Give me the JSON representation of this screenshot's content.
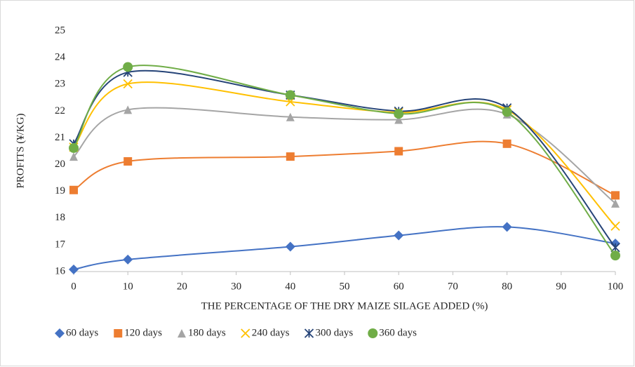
{
  "chart_data": {
    "type": "line",
    "x_label": "THE PERCENTAGE OF THE DRY MAIZE SILAGE ADDED (%)",
    "y_label": "PROFITS  (¥/KG)",
    "x": [
      0,
      10,
      40,
      60,
      80,
      100
    ],
    "series": [
      {
        "name": "60 days",
        "color": "#4472c4",
        "marker": "diamond",
        "values": [
          16.08,
          16.45,
          16.93,
          17.35,
          17.67,
          17.05
        ]
      },
      {
        "name": "120 days",
        "color": "#ed7d31",
        "marker": "square",
        "values": [
          19.05,
          20.12,
          20.3,
          20.5,
          20.78,
          18.85
        ]
      },
      {
        "name": "180 days",
        "color": "#a5a5a5",
        "marker": "triangle",
        "values": [
          20.3,
          22.05,
          21.78,
          21.68,
          21.88,
          18.55
        ]
      },
      {
        "name": "240 days",
        "color": "#ffc000",
        "marker": "x",
        "values": [
          20.65,
          23.02,
          22.35,
          21.95,
          22.05,
          17.7
        ]
      },
      {
        "name": "300 days",
        "color": "#264478",
        "marker": "star",
        "values": [
          20.78,
          23.45,
          22.6,
          22.0,
          22.12,
          16.9
        ]
      },
      {
        "name": "360 days",
        "color": "#70ad47",
        "marker": "circle",
        "values": [
          20.62,
          23.65,
          22.6,
          21.9,
          21.97,
          16.6
        ]
      }
    ],
    "xlim": [
      0,
      100
    ],
    "xticks": [
      0,
      10,
      20,
      30,
      40,
      50,
      60,
      70,
      80,
      90,
      100
    ],
    "ylim": [
      16,
      25
    ],
    "yticks": [
      16,
      17,
      18,
      19,
      20,
      21,
      22,
      23,
      24,
      25
    ],
    "grid": false,
    "smooth": true,
    "legend": "bottom"
  }
}
